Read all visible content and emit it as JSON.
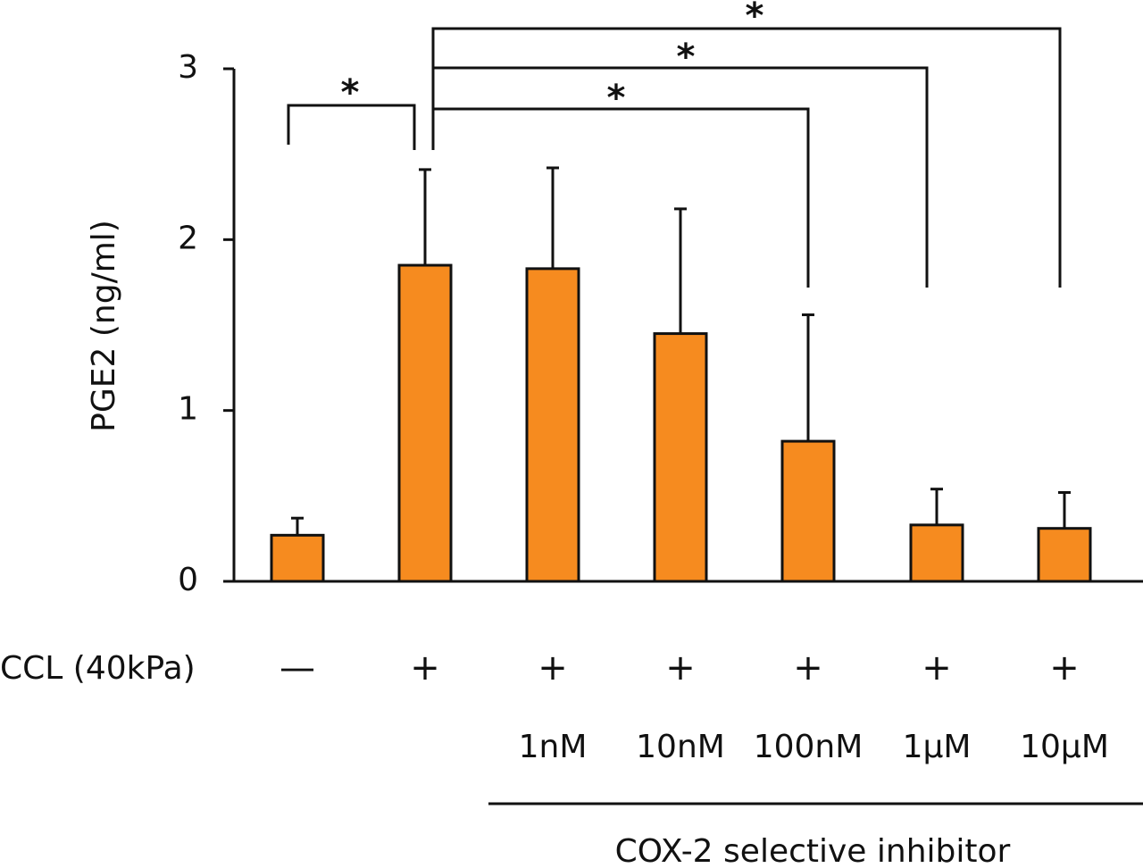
{
  "chart_data": {
    "type": "bar",
    "y_label": "PGE2 (ng/ml)",
    "row_label": "CCL (40kPa)",
    "categories": [
      "—",
      "+",
      "+",
      "+",
      "+",
      "+",
      "+"
    ],
    "doses": [
      null,
      null,
      "1nM",
      "10nM",
      "100nM",
      "1µM",
      "10µM"
    ],
    "group_label": "COX-2 selective inhibitor",
    "values": [
      0.27,
      1.85,
      1.83,
      1.45,
      0.82,
      0.33,
      0.31
    ],
    "errors": [
      0.1,
      0.56,
      0.59,
      0.73,
      0.74,
      0.21,
      0.21
    ],
    "color": "#f68b1f",
    "ylim": [
      0,
      3
    ],
    "yticks": [
      0,
      1,
      2,
      3
    ],
    "annotations": [
      "*",
      "*",
      "*",
      "*"
    ]
  }
}
